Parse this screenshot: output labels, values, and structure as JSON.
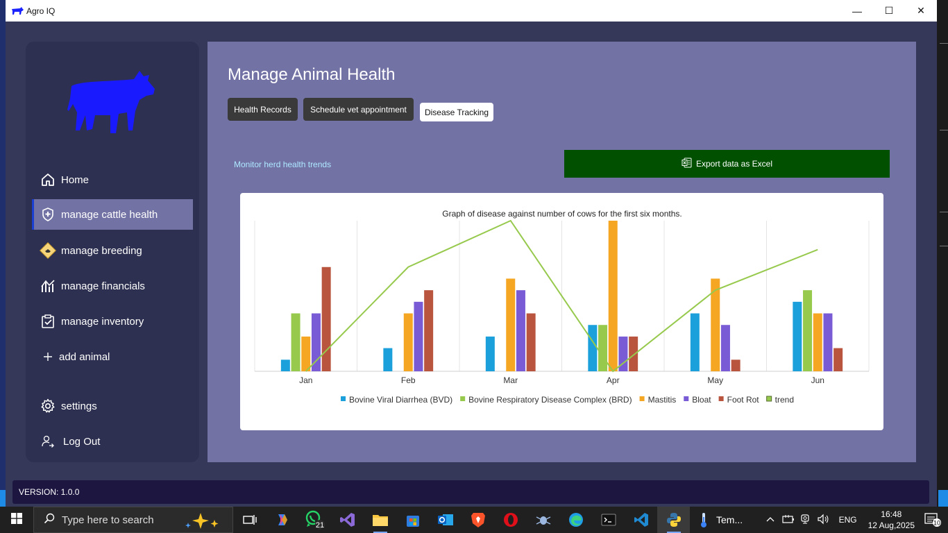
{
  "window": {
    "title": "Agro IQ",
    "minimize": "—",
    "maximize": "☐",
    "close": "✕"
  },
  "sidebar": {
    "items": [
      {
        "label": "Home",
        "icon": "home-icon"
      },
      {
        "label": "manage cattle health",
        "icon": "shield-plus-icon"
      },
      {
        "label": "manage breeding",
        "icon": "breeding-icon"
      },
      {
        "label": "manage financials",
        "icon": "chart-up-icon"
      },
      {
        "label": "manage inventory",
        "icon": "clipboard-check-icon"
      },
      {
        "label": "add animal",
        "icon": "plus-icon"
      },
      {
        "label": "settings",
        "icon": "gear-icon"
      },
      {
        "label": "Log Out",
        "icon": "logout-user-icon"
      }
    ],
    "active_index": 1
  },
  "main": {
    "title": "Manage Animal Health",
    "tabs": [
      {
        "label": "Health Records",
        "selected": false
      },
      {
        "label": "Schedule vet appointment",
        "selected": false
      },
      {
        "label": "Disease Tracking",
        "selected": true
      }
    ],
    "subtitle": "Monitor herd health trends",
    "export_label": "Export data as Excel"
  },
  "colors": {
    "bvd": "#1ca0dc",
    "brd": "#96c94c",
    "mastitis": "#f5a623",
    "bloat": "#7a5bd6",
    "foot_rot": "#b9543f",
    "trend": "#96c94c",
    "export_bg": "#005000"
  },
  "chart_data": {
    "type": "bar",
    "title": "Graph of disease against number of cows for the first six months.",
    "categories": [
      "Jan",
      "Feb",
      "Mar",
      "Apr",
      "May",
      "Jun"
    ],
    "ylim": [
      0,
      13
    ],
    "grid": "vertical",
    "legend_position": "bottom",
    "series": [
      {
        "name": "Bovine Viral Diarrhea (BVD)",
        "values": [
          1,
          2,
          3,
          4,
          5,
          6
        ]
      },
      {
        "name": "Bovine Respiratory Disease Complex (BRD)",
        "values": [
          5,
          0,
          0,
          4,
          0,
          7
        ]
      },
      {
        "name": "Mastitis",
        "values": [
          3,
          5,
          8,
          13,
          8,
          5
        ]
      },
      {
        "name": "Bloat",
        "values": [
          5,
          6,
          7,
          3,
          4,
          5
        ]
      },
      {
        "name": "Foot Rot",
        "values": [
          9,
          7,
          5,
          3,
          1,
          2
        ]
      }
    ],
    "trend": {
      "name": "trend",
      "values": [
        0,
        9,
        13,
        0,
        7,
        10.5
      ]
    }
  },
  "footer": {
    "version": "VERSION: 1.0.0"
  },
  "taskbar": {
    "search_placeholder": "Type here to search",
    "whatsapp_badge": "21",
    "temp_label": "Tem...",
    "language": "ENG",
    "time": "16:48",
    "date": "12 Aug,2025",
    "notification_count": "10"
  }
}
